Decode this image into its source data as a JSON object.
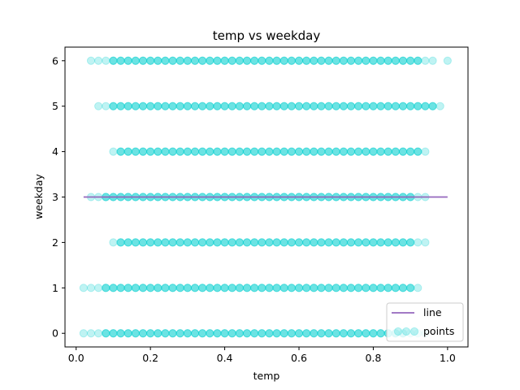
{
  "chart_data": {
    "type": "scatter",
    "title": "temp vs weekday",
    "xlabel": "temp",
    "ylabel": "weekday",
    "xlim": [
      -0.03,
      1.055
    ],
    "ylim": [
      -0.3,
      6.3
    ],
    "xticks": [
      0.0,
      0.2,
      0.4,
      0.6,
      0.8,
      1.0
    ],
    "xtick_labels": [
      "0.0",
      "0.2",
      "0.4",
      "0.6",
      "0.8",
      "1.0"
    ],
    "yticks": [
      0,
      1,
      2,
      3,
      4,
      5,
      6
    ],
    "ytick_labels": [
      "0",
      "1",
      "2",
      "3",
      "4",
      "5",
      "6"
    ],
    "grid": false,
    "legend_position": "lower-right",
    "colors": {
      "points": "#00ced1",
      "line": "#9467bd",
      "axes": "#000000"
    },
    "series": [
      {
        "name": "points",
        "kind": "scatter",
        "alpha": 0.25,
        "rows": [
          {
            "y": 0,
            "x_min": 0.02,
            "x_max": 0.94,
            "sparse": [
              0.02,
              0.04,
              0.06,
              0.9,
              0.92,
              0.94
            ]
          },
          {
            "y": 1,
            "x_min": 0.02,
            "x_max": 0.92,
            "sparse": [
              0.02,
              0.04,
              0.06,
              0.92
            ]
          },
          {
            "y": 2,
            "x_min": 0.1,
            "x_max": 0.94,
            "sparse": [
              0.1,
              0.92,
              0.94
            ]
          },
          {
            "y": 3,
            "x_min": 0.02,
            "x_max": 0.94,
            "sparse": [
              0.04,
              0.06,
              0.92,
              0.94
            ]
          },
          {
            "y": 4,
            "x_min": 0.1,
            "x_max": 0.94,
            "sparse": [
              0.1,
              0.94
            ]
          },
          {
            "y": 5,
            "x_min": 0.06,
            "x_max": 0.98,
            "sparse": [
              0.06,
              0.08,
              0.98
            ]
          },
          {
            "y": 6,
            "x_min": 0.02,
            "x_max": 1.0,
            "sparse": [
              0.04,
              0.06,
              0.08,
              0.94,
              0.96,
              1.0
            ]
          }
        ]
      },
      {
        "name": "line",
        "kind": "line",
        "x": [
          0.02,
          1.0
        ],
        "y": [
          3.0,
          3.0
        ]
      }
    ]
  }
}
